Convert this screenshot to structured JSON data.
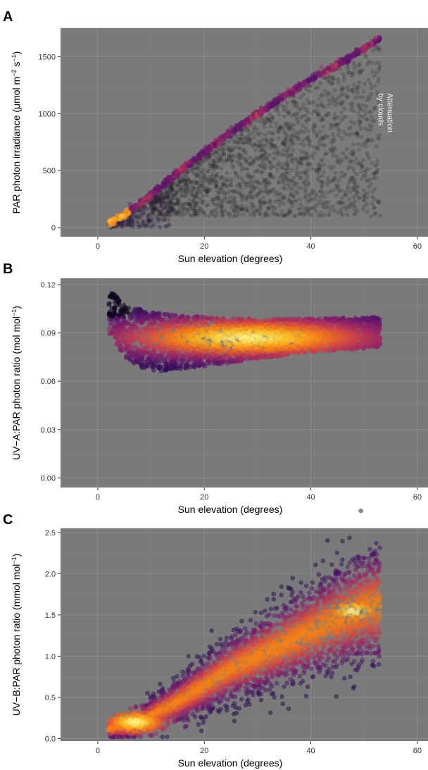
{
  "chart_data": [
    {
      "panel": "A",
      "type": "scatter",
      "xlabel": "Sun elevation (degrees)",
      "ylabel_parts": [
        "PAR photon irradiance (μmol m",
        "−2",
        " s",
        "−1",
        ")"
      ],
      "xlim": [
        -7,
        62
      ],
      "ylim": [
        -80,
        1750
      ],
      "xticks": [
        0,
        20,
        40,
        60
      ],
      "yticks": [
        0,
        500,
        1000,
        1500
      ],
      "annotation_lines": [
        "Attenuation",
        "by clouds"
      ],
      "background": "#7a7a7a",
      "grid": true,
      "colormap": "inferno",
      "clear_sky_curve": {
        "x": [
          2,
          5,
          10,
          15,
          20,
          25,
          30,
          35,
          40,
          45,
          50,
          53
        ],
        "y": [
          30,
          110,
          290,
          480,
          660,
          840,
          1000,
          1150,
          1300,
          1430,
          1570,
          1660
        ]
      },
      "cloud_attenuation": {
        "x_range": [
          10,
          53
        ],
        "y_min": 100
      }
    },
    {
      "panel": "B",
      "type": "scatter",
      "xlabel": "Sun elevation (degrees)",
      "ylabel_parts": [
        "UV−A:PAR photon ratio (mol mol",
        "−1",
        ")"
      ],
      "xlim": [
        -7,
        62
      ],
      "ylim": [
        -0.006,
        0.124
      ],
      "xticks": [
        0,
        20,
        40,
        60
      ],
      "yticks": [
        0.0,
        0.03,
        0.06,
        0.09,
        0.12
      ],
      "ytick_labels": [
        "0.00",
        "0.03",
        "0.06",
        "0.09",
        "0.12"
      ],
      "background": "#7a7a7a",
      "grid": true,
      "colormap": "inferno",
      "upper_envelope": {
        "x": [
          2,
          5,
          10,
          15,
          20,
          30,
          40,
          53
        ],
        "y": [
          0.118,
          0.108,
          0.103,
          0.101,
          0.1,
          0.099,
          0.099,
          0.1
        ]
      },
      "lower_envelope": {
        "x": [
          2,
          5,
          8,
          10,
          15,
          20,
          30,
          40,
          53
        ],
        "y": [
          0.09,
          0.075,
          0.068,
          0.066,
          0.067,
          0.069,
          0.074,
          0.078,
          0.081
        ]
      },
      "density_peak": {
        "x": 28,
        "y": 0.087
      }
    },
    {
      "panel": "C",
      "type": "scatter",
      "xlabel": "Sun elevation (degrees)",
      "ylabel_parts": [
        "UV−B:PAR photon ratio (mmol mol",
        "−1",
        ")"
      ],
      "xlim": [
        -7,
        62
      ],
      "ylim": [
        -0.03,
        2.55
      ],
      "xticks": [
        0,
        20,
        40,
        60
      ],
      "yticks": [
        0.0,
        0.5,
        1.0,
        1.5,
        2.0,
        2.5
      ],
      "ytick_labels": [
        "0.0",
        "0.5",
        "1.0",
        "1.5",
        "2.0",
        "2.5"
      ],
      "background": "#7a7a7a",
      "grid": true,
      "colormap": "inferno",
      "trend": {
        "x": [
          2,
          5,
          8,
          10,
          15,
          20,
          25,
          30,
          35,
          40,
          45,
          50,
          53
        ],
        "y": [
          0.12,
          0.15,
          0.2,
          0.28,
          0.45,
          0.65,
          0.85,
          1.0,
          1.15,
          1.3,
          1.45,
          1.58,
          1.62
        ]
      },
      "density_peaks": [
        {
          "x": 7,
          "y": 0.2
        },
        {
          "x": 48,
          "y": 1.55
        }
      ]
    }
  ]
}
